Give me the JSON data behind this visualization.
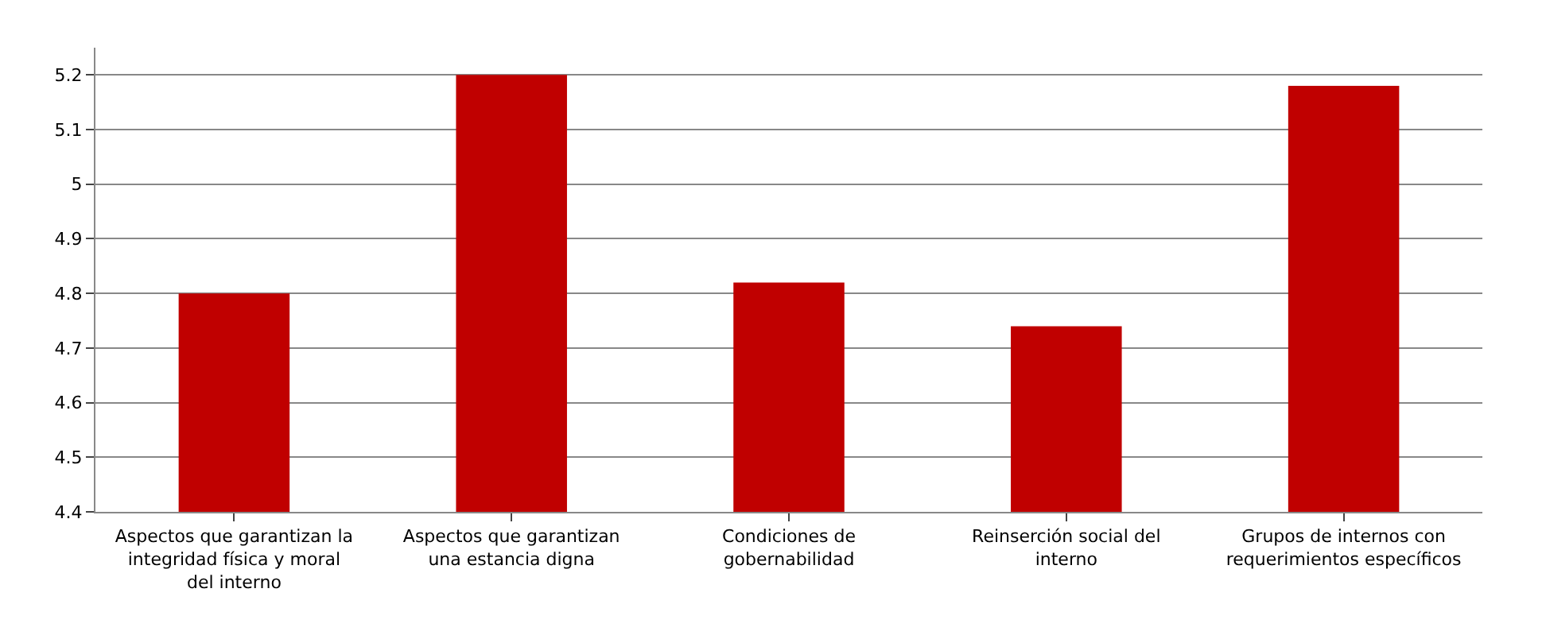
{
  "chart_data": {
    "type": "bar",
    "categories": [
      "Aspectos que garantizan la integridad física y moral del interno",
      "Aspectos que garantizan una estancia digna",
      "Condiciones de gobernabilidad",
      "Reinserción social del interno",
      "Grupos de internos con requerimientos específicos"
    ],
    "values": [
      4.8,
      5.2,
      4.82,
      4.74,
      5.18
    ],
    "color": "#c00000",
    "ylim": [
      4.4,
      5.25
    ],
    "yticks": [
      4.4,
      4.5,
      4.6,
      4.7,
      4.8,
      4.9,
      5,
      5.1,
      5.2
    ],
    "grid": "y",
    "legend": false
  }
}
